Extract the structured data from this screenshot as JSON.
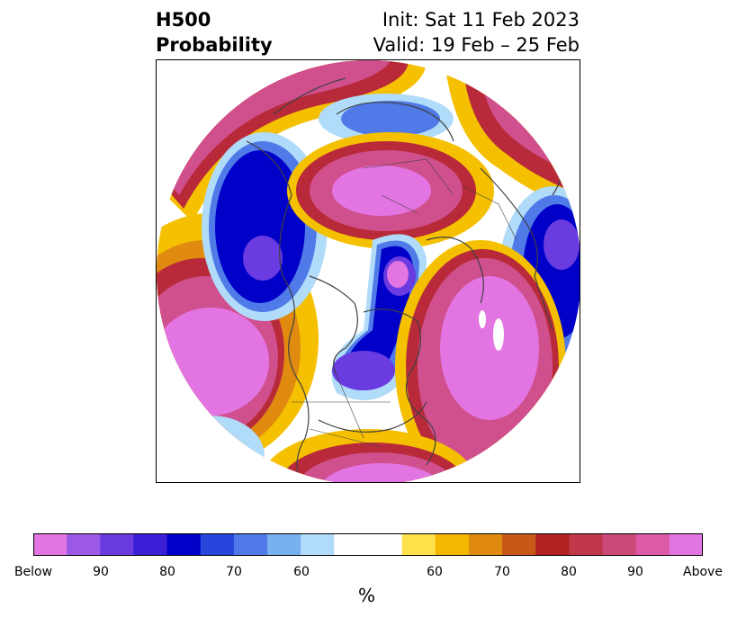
{
  "title": {
    "left_line1": "H500",
    "left_line2": "Probability",
    "right_line1": "Init: Sat 11 Feb 2023",
    "right_line2": "Valid: 19 Feb – 25 Feb"
  },
  "colorbar": {
    "label": "%",
    "colors": [
      "#e375e3",
      "#9b59e6",
      "#6a3be0",
      "#3a1fd6",
      "#0000c8",
      "#2846dc",
      "#4f7ae8",
      "#78b0f0",
      "#b0dcfa",
      "#ffffff",
      "#ffffff",
      "#ffe14a",
      "#f5b800",
      "#e08a10",
      "#c85818",
      "#b22222",
      "#c0384a",
      "#cc4a7a",
      "#dc5aa6",
      "#e375e3"
    ],
    "ticks": [
      "Below",
      "90",
      "80",
      "70",
      "60",
      "60",
      "70",
      "80",
      "90",
      "Above"
    ]
  },
  "map": {
    "colors": {
      "pink": "#e375e3",
      "magenta": "#d0508e",
      "crimson": "#b82a3a",
      "orange": "#e08a10",
      "yellow": "#f5c000",
      "paleblue": "#b0dcfa",
      "lightblue": "#4f7ae8",
      "blue": "#0000c8",
      "purple": "#6a3be0",
      "coast": "#404040"
    }
  }
}
